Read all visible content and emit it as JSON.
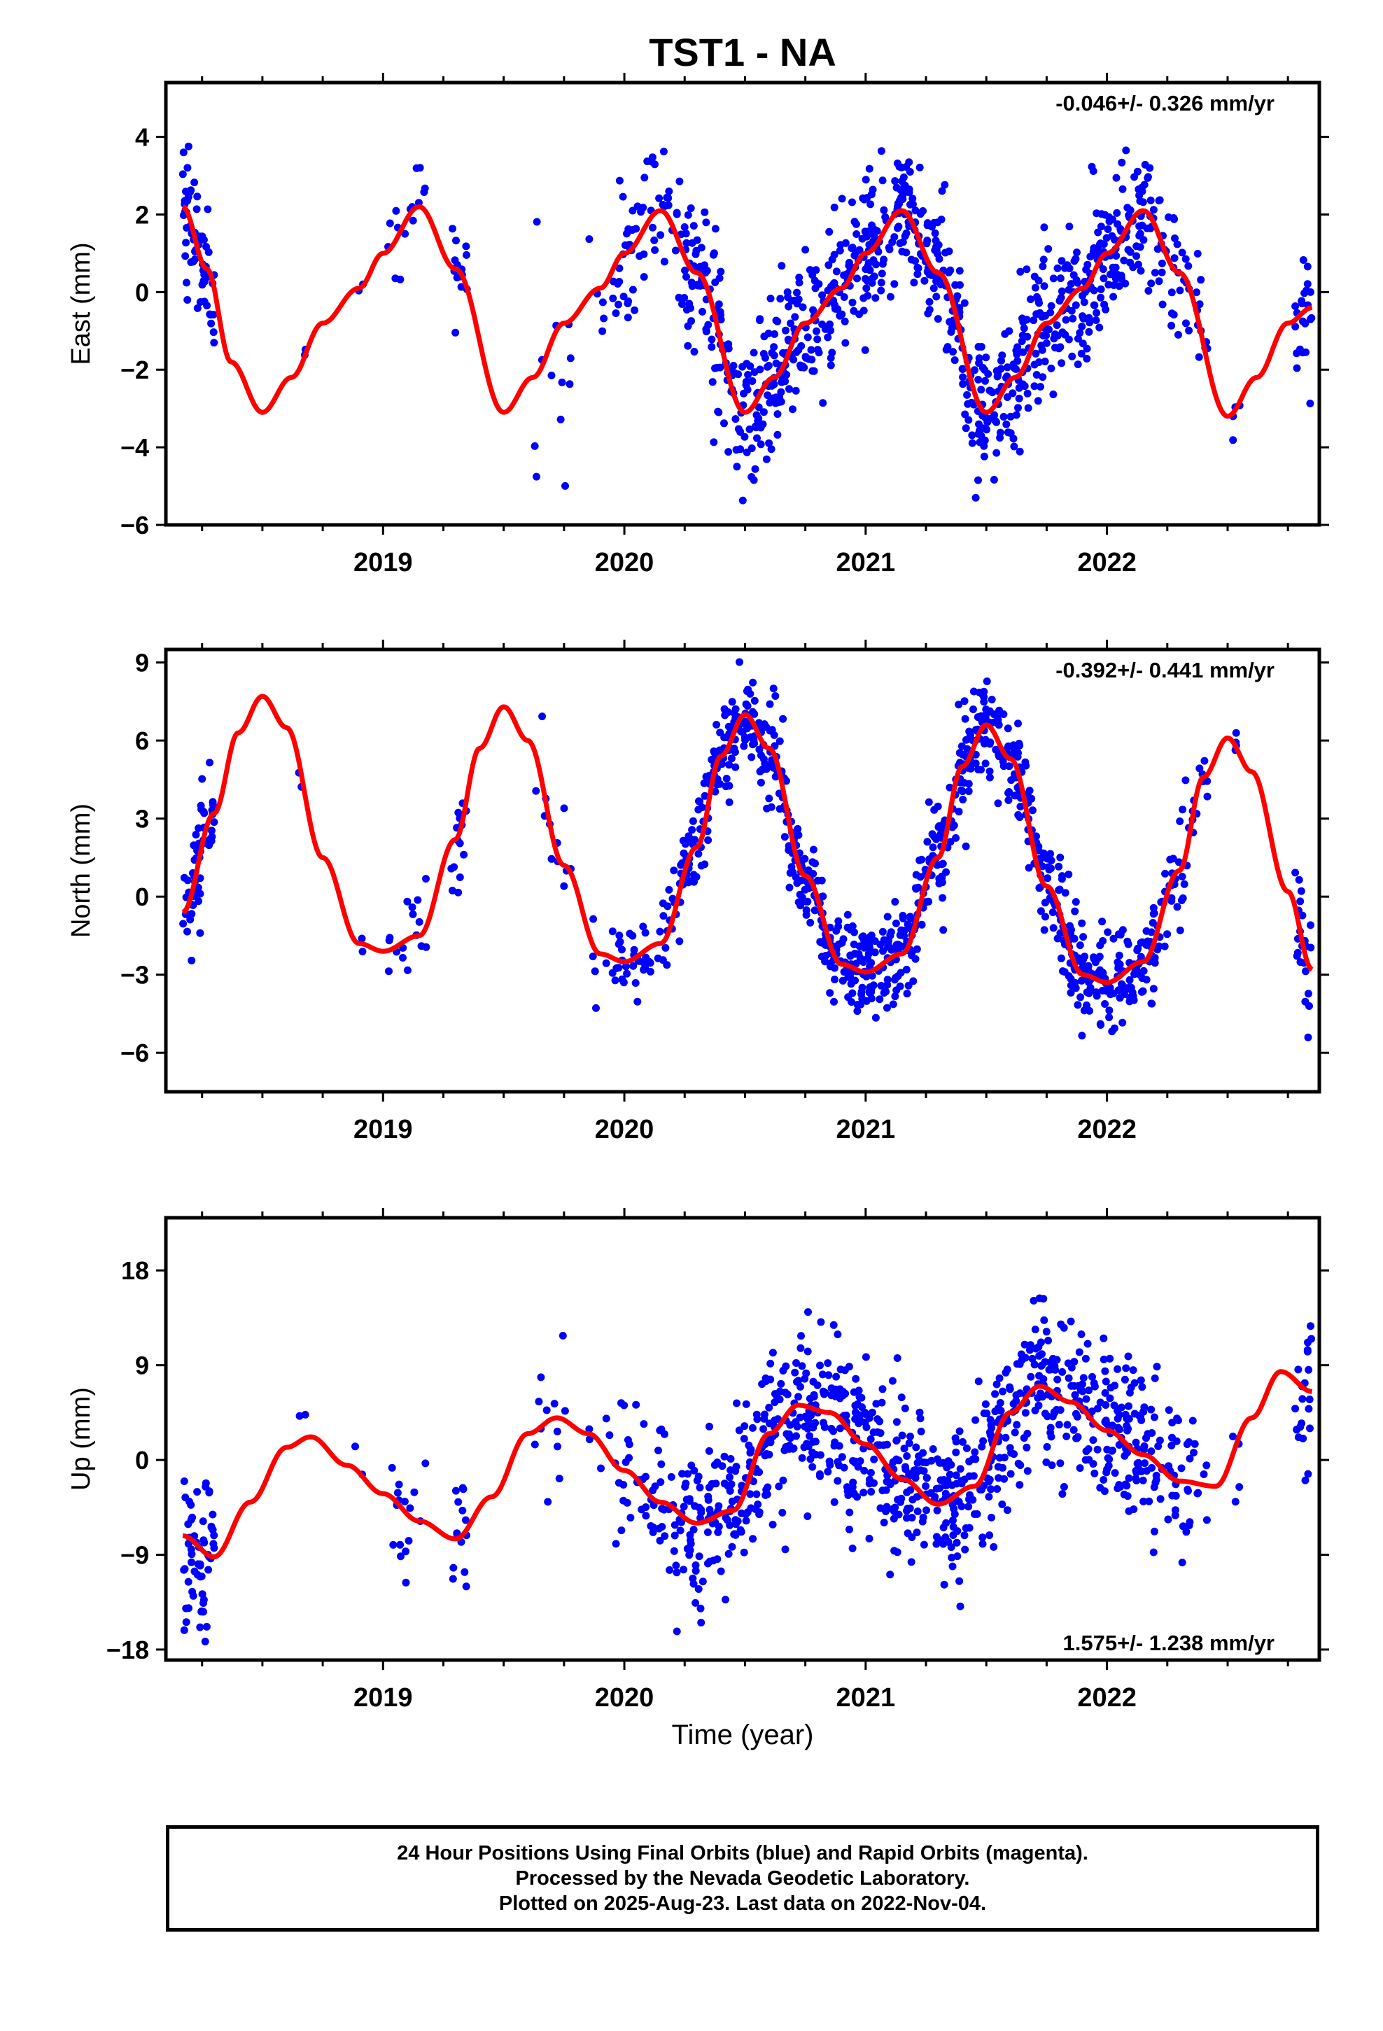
{
  "figure": {
    "title": "TST1 - NA",
    "xlabel": "Time (year)",
    "footer": [
      "24 Hour Positions Using Final Orbits (blue) and Rapid Orbits (magenta).",
      "Processed by the Nevada Geodetic Laboratory.",
      "Plotted on 2025-Aug-23. Last data on 2022-Nov-04."
    ]
  },
  "colors": {
    "data_points": "#0000ff",
    "model_curve": "#ff0000",
    "axes": "#000000"
  },
  "chart_data": [
    {
      "type": "scatter",
      "ylabel": "East (mm)",
      "rate_label": "-0.046+/- 0.326 mm/yr",
      "rate_position": "top-right",
      "xlim": [
        2018.1,
        2022.88
      ],
      "ylim": [
        -6,
        5.4
      ],
      "yticks": [
        -6,
        -4,
        -2,
        0,
        2,
        4
      ],
      "xticks": [
        2019,
        2020,
        2021,
        2022
      ],
      "grid": false,
      "data_segments": [
        {
          "start": 2018.17,
          "end": 2018.3,
          "n": 60,
          "sd": 0.9
        },
        {
          "start": 2018.65,
          "end": 2018.68,
          "n": 2,
          "sd": 0.2
        },
        {
          "start": 2018.88,
          "end": 2018.92,
          "n": 2,
          "sd": 0.2
        },
        {
          "start": 2019.02,
          "end": 2019.18,
          "n": 16,
          "sd": 0.7
        },
        {
          "start": 2019.28,
          "end": 2019.35,
          "n": 14,
          "sd": 0.6
        },
        {
          "start": 2019.62,
          "end": 2019.78,
          "n": 12,
          "sd": 1.2
        },
        {
          "start": 2019.85,
          "end": 2019.95,
          "n": 5,
          "sd": 0.6
        },
        {
          "start": 2019.95,
          "end": 2020.25,
          "n": 60,
          "sd": 0.9
        },
        {
          "start": 2020.25,
          "end": 2020.55,
          "n": 120,
          "sd": 1.0
        },
        {
          "start": 2020.55,
          "end": 2020.85,
          "n": 130,
          "sd": 0.9
        },
        {
          "start": 2020.85,
          "end": 2021.1,
          "n": 110,
          "sd": 0.9
        },
        {
          "start": 2021.1,
          "end": 2021.35,
          "n": 110,
          "sd": 0.9
        },
        {
          "start": 2021.35,
          "end": 2021.55,
          "n": 90,
          "sd": 0.9
        },
        {
          "start": 2021.55,
          "end": 2021.85,
          "n": 120,
          "sd": 0.9
        },
        {
          "start": 2021.85,
          "end": 2022.2,
          "n": 150,
          "sd": 0.9
        },
        {
          "start": 2022.2,
          "end": 2022.42,
          "n": 45,
          "sd": 0.9
        },
        {
          "start": 2022.52,
          "end": 2022.55,
          "n": 4,
          "sd": 0.4
        },
        {
          "start": 2022.78,
          "end": 2022.85,
          "n": 22,
          "sd": 0.8
        }
      ],
      "model": {
        "type": "line",
        "x": [
          2018.17,
          2018.27,
          2018.37,
          2018.5,
          2018.62,
          2018.75,
          2018.9,
          2019.0,
          2019.15,
          2019.3,
          2019.5,
          2019.62,
          2019.75,
          2019.9,
          2020.0,
          2020.15,
          2020.3,
          2020.5,
          2020.62,
          2020.75,
          2020.9,
          2021.0,
          2021.15,
          2021.3,
          2021.5,
          2021.62,
          2021.75,
          2021.9,
          2022.0,
          2022.15,
          2022.3,
          2022.5,
          2022.62,
          2022.75,
          2022.85
        ],
        "y": [
          2.2,
          0.6,
          -1.8,
          -3.1,
          -2.2,
          -0.8,
          0.1,
          1.0,
          2.2,
          0.6,
          -3.1,
          -2.2,
          -0.8,
          0.1,
          1.0,
          2.1,
          0.5,
          -3.1,
          -2.2,
          -0.8,
          0.1,
          1.0,
          2.1,
          0.5,
          -3.1,
          -2.2,
          -0.8,
          0.1,
          1.0,
          2.1,
          0.5,
          -3.2,
          -2.2,
          -0.8,
          -0.4
        ]
      }
    },
    {
      "type": "scatter",
      "ylabel": "North (mm)",
      "rate_label": "-0.392+/- 0.441 mm/yr",
      "rate_position": "top-right",
      "xlim": [
        2018.1,
        2022.88
      ],
      "ylim": [
        -7.5,
        9.5
      ],
      "yticks": [
        -6,
        -3,
        0,
        3,
        6,
        9
      ],
      "xticks": [
        2019,
        2020,
        2021,
        2022
      ],
      "grid": false,
      "data_segments": [
        {
          "start": 2018.17,
          "end": 2018.3,
          "n": 60,
          "sd": 1.0
        },
        {
          "start": 2018.65,
          "end": 2018.68,
          "n": 2,
          "sd": 0.3
        },
        {
          "start": 2018.88,
          "end": 2018.92,
          "n": 2,
          "sd": 0.4
        },
        {
          "start": 2019.02,
          "end": 2019.18,
          "n": 16,
          "sd": 0.9
        },
        {
          "start": 2019.28,
          "end": 2019.35,
          "n": 14,
          "sd": 1.0
        },
        {
          "start": 2019.62,
          "end": 2019.78,
          "n": 12,
          "sd": 1.2
        },
        {
          "start": 2019.85,
          "end": 2019.95,
          "n": 5,
          "sd": 0.8
        },
        {
          "start": 2019.95,
          "end": 2020.25,
          "n": 60,
          "sd": 1.0
        },
        {
          "start": 2020.25,
          "end": 2020.55,
          "n": 120,
          "sd": 1.0
        },
        {
          "start": 2020.55,
          "end": 2020.85,
          "n": 130,
          "sd": 1.0
        },
        {
          "start": 2020.85,
          "end": 2021.1,
          "n": 110,
          "sd": 1.0
        },
        {
          "start": 2021.1,
          "end": 2021.35,
          "n": 110,
          "sd": 1.0
        },
        {
          "start": 2021.35,
          "end": 2021.55,
          "n": 90,
          "sd": 1.0
        },
        {
          "start": 2021.55,
          "end": 2021.85,
          "n": 120,
          "sd": 1.0
        },
        {
          "start": 2021.85,
          "end": 2022.2,
          "n": 150,
          "sd": 1.0
        },
        {
          "start": 2022.2,
          "end": 2022.42,
          "n": 45,
          "sd": 1.0
        },
        {
          "start": 2022.52,
          "end": 2022.55,
          "n": 4,
          "sd": 0.6
        },
        {
          "start": 2022.78,
          "end": 2022.85,
          "n": 22,
          "sd": 1.2
        }
      ],
      "model": {
        "type": "line",
        "x": [
          2018.17,
          2018.3,
          2018.4,
          2018.5,
          2018.6,
          2018.75,
          2018.9,
          2019.0,
          2019.15,
          2019.3,
          2019.4,
          2019.5,
          2019.6,
          2019.75,
          2019.9,
          2020.0,
          2020.15,
          2020.3,
          2020.4,
          2020.5,
          2020.6,
          2020.75,
          2020.9,
          2021.0,
          2021.15,
          2021.3,
          2021.4,
          2021.5,
          2021.6,
          2021.75,
          2021.9,
          2022.0,
          2022.15,
          2022.3,
          2022.4,
          2022.5,
          2022.6,
          2022.75,
          2022.85
        ],
        "y": [
          -0.6,
          3.2,
          6.3,
          7.7,
          6.5,
          1.5,
          -1.8,
          -2.1,
          -1.5,
          2.2,
          5.7,
          7.3,
          6.0,
          1.2,
          -2.2,
          -2.5,
          -1.8,
          1.9,
          5.4,
          7.0,
          5.7,
          0.8,
          -2.6,
          -2.9,
          -2.2,
          1.5,
          5.0,
          6.6,
          5.3,
          0.4,
          -3.0,
          -3.3,
          -2.5,
          1.0,
          4.6,
          6.1,
          4.8,
          0.2,
          -2.8
        ]
      }
    },
    {
      "type": "scatter",
      "ylabel": "Up (mm)",
      "rate_label": "1.575+/- 1.238 mm/yr",
      "rate_position": "bottom-right",
      "xlim": [
        2018.1,
        2022.88
      ],
      "ylim": [
        -19,
        23
      ],
      "yticks": [
        -18,
        -9,
        0,
        9,
        18
      ],
      "xticks": [
        2019,
        2020,
        2021,
        2022
      ],
      "grid": false,
      "data_segments": [
        {
          "start": 2018.17,
          "end": 2018.3,
          "n": 60,
          "sd": 4.5
        },
        {
          "start": 2018.65,
          "end": 2018.68,
          "n": 2,
          "sd": 1.0
        },
        {
          "start": 2018.88,
          "end": 2018.92,
          "n": 2,
          "sd": 1.5
        },
        {
          "start": 2019.02,
          "end": 2019.18,
          "n": 16,
          "sd": 3.0
        },
        {
          "start": 2019.28,
          "end": 2019.35,
          "n": 14,
          "sd": 3.5
        },
        {
          "start": 2019.62,
          "end": 2019.78,
          "n": 12,
          "sd": 4.5
        },
        {
          "start": 2019.85,
          "end": 2019.95,
          "n": 5,
          "sd": 3.0
        },
        {
          "start": 2019.95,
          "end": 2020.25,
          "n": 60,
          "sd": 4.0
        },
        {
          "start": 2020.25,
          "end": 2020.55,
          "n": 120,
          "sd": 3.8
        },
        {
          "start": 2020.55,
          "end": 2020.85,
          "n": 130,
          "sd": 3.8
        },
        {
          "start": 2020.85,
          "end": 2021.1,
          "n": 110,
          "sd": 3.8
        },
        {
          "start": 2021.1,
          "end": 2021.35,
          "n": 110,
          "sd": 3.8
        },
        {
          "start": 2021.35,
          "end": 2021.55,
          "n": 90,
          "sd": 3.8
        },
        {
          "start": 2021.55,
          "end": 2021.85,
          "n": 120,
          "sd": 4.0
        },
        {
          "start": 2021.85,
          "end": 2022.2,
          "n": 150,
          "sd": 3.8
        },
        {
          "start": 2022.2,
          "end": 2022.42,
          "n": 45,
          "sd": 4.0
        },
        {
          "start": 2022.52,
          "end": 2022.55,
          "n": 4,
          "sd": 3.0
        },
        {
          "start": 2022.78,
          "end": 2022.85,
          "n": 22,
          "sd": 5.0
        }
      ],
      "model": {
        "type": "line",
        "x": [
          2018.17,
          2018.3,
          2018.45,
          2018.6,
          2018.7,
          2018.85,
          2019.0,
          2019.15,
          2019.3,
          2019.45,
          2019.6,
          2019.72,
          2019.85,
          2020.0,
          2020.15,
          2020.3,
          2020.45,
          2020.6,
          2020.72,
          2020.85,
          2021.0,
          2021.15,
          2021.3,
          2021.45,
          2021.6,
          2021.72,
          2021.85,
          2022.0,
          2022.15,
          2022.3,
          2022.45,
          2022.6,
          2022.72,
          2022.85
        ],
        "y": [
          -7.2,
          -9.2,
          -4.0,
          1.2,
          2.2,
          -0.5,
          -3.2,
          -5.8,
          -7.5,
          -3.5,
          2.5,
          4.0,
          2.5,
          -1.0,
          -4.0,
          -6.0,
          -4.8,
          2.5,
          5.2,
          4.5,
          1.5,
          -1.8,
          -4.2,
          -2.5,
          4.5,
          7.0,
          5.5,
          2.8,
          0.5,
          -2.0,
          -2.5,
          4.0,
          8.4,
          6.5
        ]
      }
    }
  ]
}
